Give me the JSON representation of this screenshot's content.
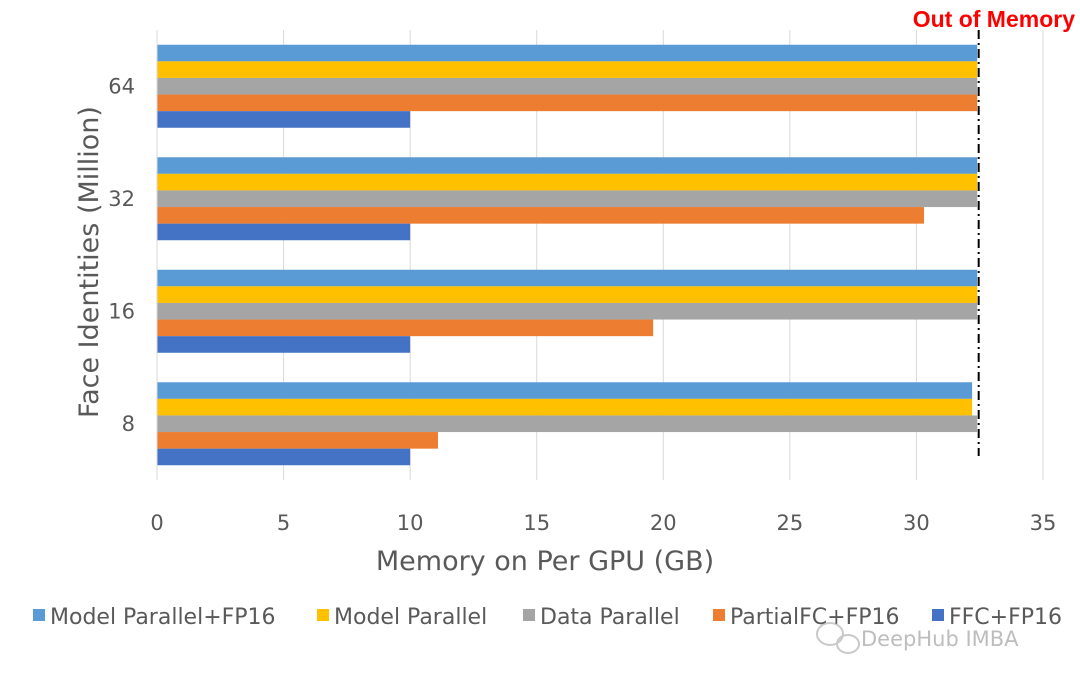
{
  "chart_data": {
    "type": "bar",
    "orientation": "horizontal",
    "categories": [
      "8",
      "16",
      "32",
      "64"
    ],
    "series": [
      {
        "name": "Model Parallel+FP16",
        "color": "#5b9bd5",
        "values": [
          32.2,
          32.4,
          32.4,
          32.4
        ]
      },
      {
        "name": "Model Parallel",
        "color": "#ffc000",
        "values": [
          32.2,
          32.4,
          32.4,
          32.4
        ]
      },
      {
        "name": "Data Parallel",
        "color": "#a5a5a5",
        "values": [
          32.4,
          32.4,
          32.4,
          32.4
        ]
      },
      {
        "name": "PartialFC+FP16",
        "color": "#ed7d31",
        "values": [
          11.1,
          19.6,
          30.3,
          32.4
        ]
      },
      {
        "name": "FFC+FP16",
        "color": "#4472c4",
        "values": [
          10.0,
          10.0,
          10.0,
          10.0
        ]
      }
    ],
    "xlabel": "Memory on Per GPU (GB)",
    "ylabel": "Face Identities (Million)",
    "xlim": [
      0,
      35
    ],
    "xticks": [
      "0",
      "5",
      "10",
      "15",
      "20",
      "25",
      "30",
      "35"
    ],
    "grid": true,
    "legend_position": "bottom",
    "annotation": {
      "text": "Out of Memory",
      "x": 32.4,
      "color": "#ff0000"
    }
  },
  "watermark": {
    "text": "DeepHub IMBA"
  }
}
